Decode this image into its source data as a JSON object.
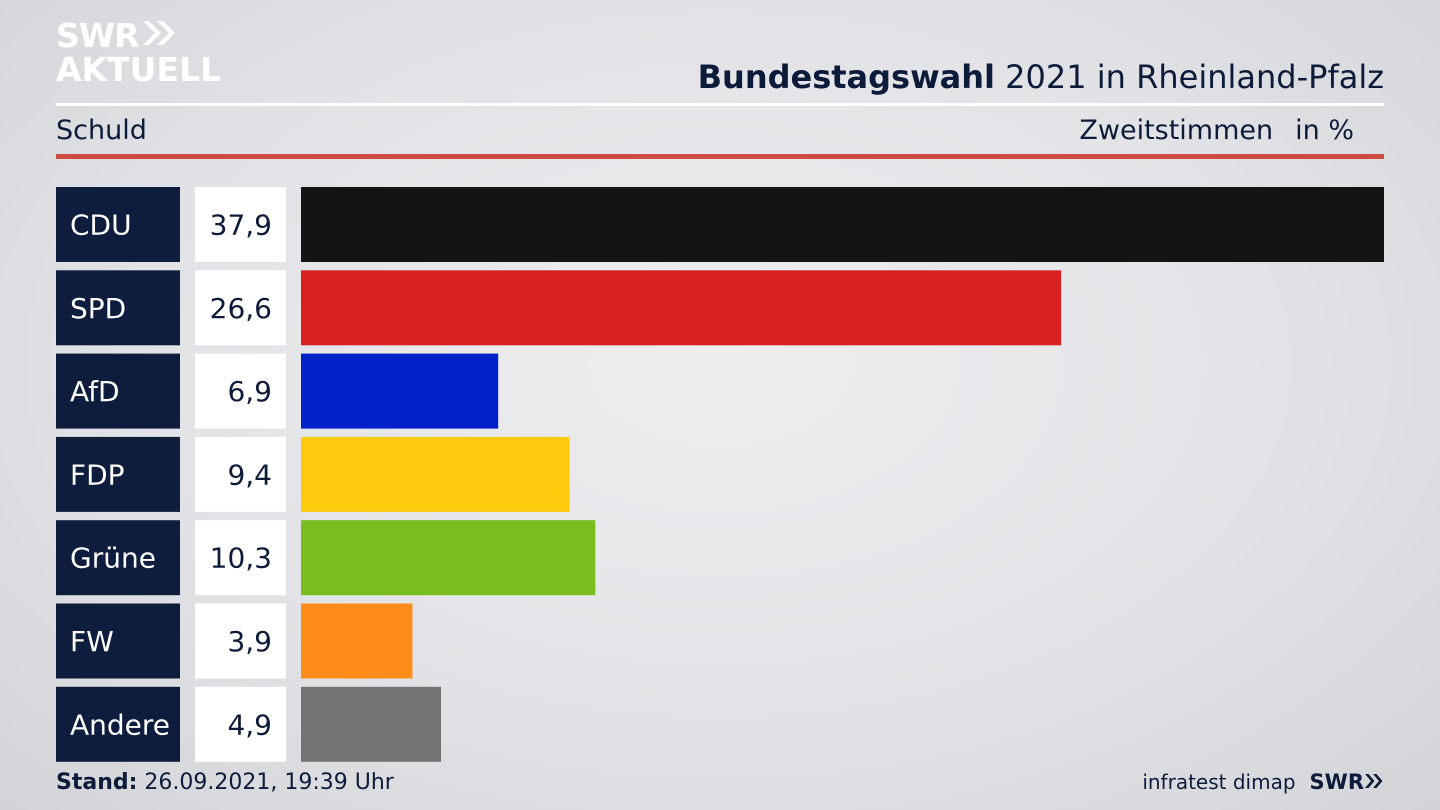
{
  "logo": {
    "line1": "SWR",
    "line2": "AKTUELL"
  },
  "header": {
    "title_bold": "Bundestagswahl",
    "title_rest": " 2021 in Rheinland-Pfalz",
    "left_label": "Schuld",
    "measure_label": "Zweitstimmen",
    "unit_label": "in %"
  },
  "footer": {
    "stand_label": "Stand:",
    "stand_value": " 26.09.2021, 19:39 Uhr",
    "source": "infratest dimap",
    "brand": "SWR"
  },
  "colors": {
    "label_box": "#0e1c3d",
    "value_box": "#ffffff",
    "accent_rule": "#d14a3f"
  },
  "chart_data": {
    "type": "bar",
    "orientation": "horizontal",
    "categories": [
      "CDU",
      "SPD",
      "AfD",
      "FDP",
      "Grüne",
      "FW",
      "Andere"
    ],
    "values": [
      37.9,
      26.6,
      6.9,
      9.4,
      10.3,
      3.9,
      4.9
    ],
    "value_labels": [
      "37,9",
      "26,6",
      "6,9",
      "9,4",
      "10,3",
      "3,9",
      "4,9"
    ],
    "colors": [
      "#141414",
      "#d82020",
      "#0021c9",
      "#fecb0c",
      "#78be1e",
      "#ff8c19",
      "#737373"
    ],
    "xlim": [
      0,
      37.9
    ]
  }
}
